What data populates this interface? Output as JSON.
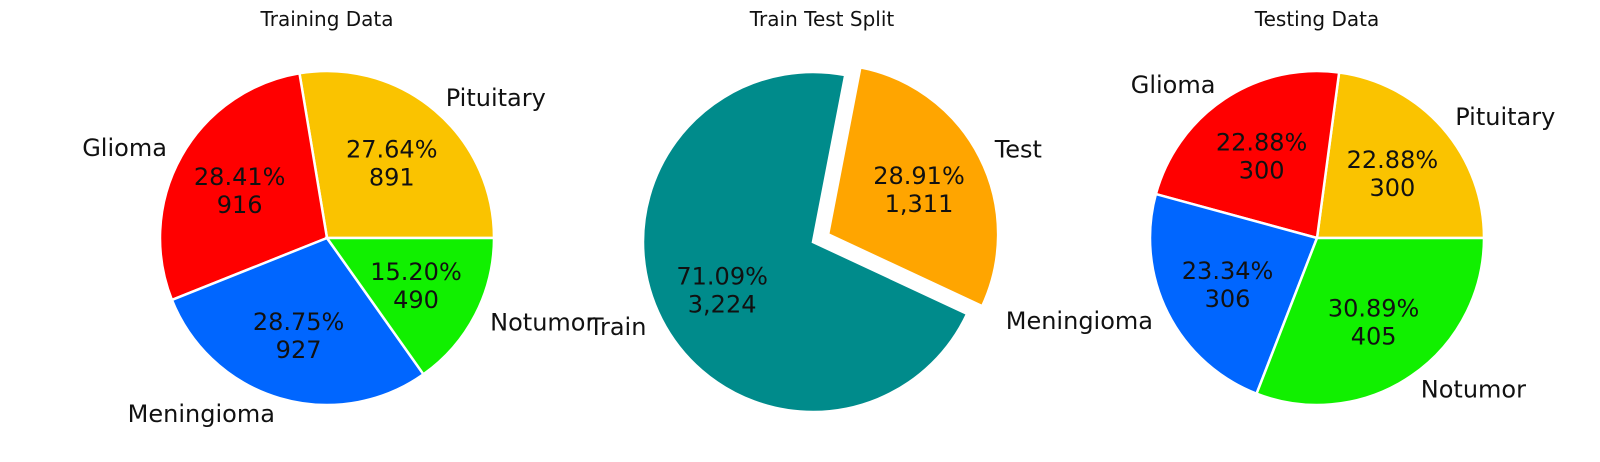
{
  "chart_data": [
    {
      "type": "pie",
      "title": "Training Data",
      "categories": [
        "Pituitary",
        "Glioma",
        "Meningioma",
        "Notumor"
      ],
      "values": [
        891,
        916,
        927,
        490
      ],
      "percent_labels": [
        "27.64%",
        "28.41%",
        "28.75%",
        "15.20%"
      ],
      "count_labels": [
        "891",
        "916",
        "927",
        "490"
      ],
      "colors": [
        "#FAC300",
        "#FF0000",
        "#0066FF",
        "#11F000"
      ],
      "start_angle": 0,
      "direction": "counterclockwise",
      "explode": [
        0,
        0,
        0,
        0
      ]
    },
    {
      "type": "pie",
      "title": "Train Test Split",
      "categories": [
        "Test",
        "Train"
      ],
      "values": [
        1311,
        3224
      ],
      "percent_labels": [
        "28.91%",
        "71.09%"
      ],
      "count_labels": [
        "1,311",
        "3,224"
      ],
      "colors": [
        "#FFA500",
        "#008B8B"
      ],
      "start_angle": -25,
      "direction": "counterclockwise",
      "explode": [
        0.1,
        0
      ]
    },
    {
      "type": "pie",
      "title": "Testing Data",
      "categories": [
        "Pituitary",
        "Glioma",
        "Meningioma",
        "Notumor"
      ],
      "values": [
        300,
        300,
        306,
        405
      ],
      "percent_labels": [
        "22.88%",
        "22.88%",
        "23.34%",
        "30.89%"
      ],
      "count_labels": [
        "300",
        "300",
        "306",
        "405"
      ],
      "colors": [
        "#FAC300",
        "#FF0000",
        "#0066FF",
        "#11F000"
      ],
      "start_angle": 0,
      "direction": "counterclockwise",
      "explode": [
        0,
        0,
        0,
        0
      ]
    }
  ]
}
